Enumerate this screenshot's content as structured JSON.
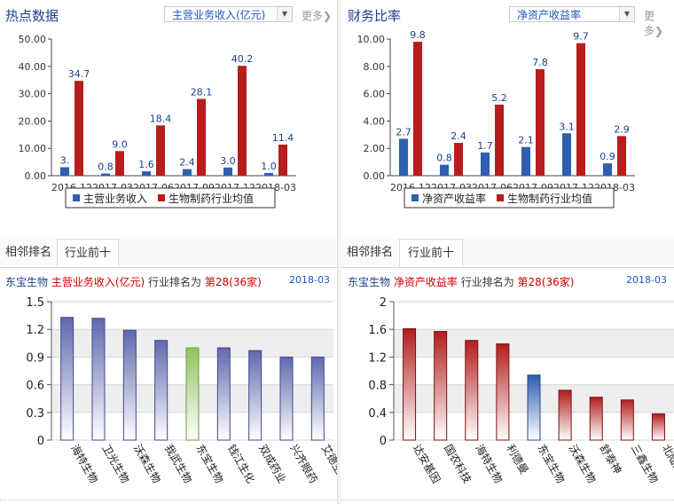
{
  "left": {
    "title": "热点数据",
    "select_value": "主营业务收入(亿元)",
    "more": "更多",
    "tabs": [
      "相邻排名",
      "行业前十"
    ],
    "rank": {
      "company": "东宝生物",
      "metric": "主营业务收入(亿元)",
      "mid": "行业排名为",
      "rank": "第28(36家)",
      "date": "2018-03"
    }
  },
  "right": {
    "title": "财务比率",
    "select_value": "净资产收益率",
    "more": "更多",
    "tabs": [
      "相邻排名",
      "行业前十"
    ],
    "rank": {
      "company": "东宝生物",
      "metric": "净资产收益率",
      "mid": "行业排名为",
      "rank": "第28(36家)",
      "date": "2018-03"
    }
  },
  "colors": {
    "blue": "#2e5fb0",
    "red": "#b81d1d",
    "green": "#9cc66b",
    "title": "#1d3f8c"
  },
  "chart_data": [
    {
      "type": "bar",
      "categories": [
        "2016-12",
        "2017-03",
        "2017-06",
        "2017-09",
        "2017-12",
        "2018-03"
      ],
      "series": [
        {
          "name": "主营业务收入",
          "values": [
            3.1,
            0.8,
            1.6,
            2.4,
            3.0,
            1.0
          ],
          "labels": [
            "3.",
            "0.8",
            "1.6",
            "2.4",
            "3.0",
            "1.0"
          ]
        },
        {
          "name": "生物制药行业均值",
          "values": [
            34.7,
            9.0,
            18.4,
            28.1,
            40.2,
            11.4
          ],
          "labels": [
            "34.7",
            "9.0",
            "18.4",
            "28.1",
            "40.2",
            "11.4"
          ]
        }
      ],
      "yticks": [
        "0.00",
        "10.00",
        "20.00",
        "30.00",
        "40.00",
        "50.00"
      ],
      "ylim": [
        0,
        50
      ],
      "legend": "bottom"
    },
    {
      "type": "bar",
      "categories": [
        "2016-12",
        "2017-03",
        "2017-06",
        "2017-09",
        "2017-12",
        "2018-03"
      ],
      "series": [
        {
          "name": "净资产收益率",
          "values": [
            2.7,
            0.8,
            1.7,
            2.1,
            3.1,
            0.9
          ],
          "labels": [
            "2.7",
            "0.8",
            "1.7",
            "2.1",
            "3.1",
            "0.9"
          ]
        },
        {
          "name": "生物制药行业均值",
          "values": [
            9.8,
            2.4,
            5.2,
            7.8,
            9.7,
            2.9
          ],
          "labels": [
            "9.8",
            "2.4",
            "5.2",
            "7.8",
            "9.7",
            "2.9"
          ]
        }
      ],
      "yticks": [
        "0.00",
        "2.00",
        "4.00",
        "6.00",
        "8.00",
        "10.00"
      ],
      "ylim": [
        0,
        10
      ],
      "legend": "bottom"
    },
    {
      "type": "bar",
      "categories": [
        "海特生物",
        "卫光生物",
        "沃森生物",
        "我武生物",
        "东宝生物",
        "钱江生化",
        "双成药业",
        "兴齐眼药",
        "艾德生物"
      ],
      "values": [
        1.33,
        1.32,
        1.19,
        1.08,
        1.0,
        1.0,
        0.97,
        0.9,
        0.9
      ],
      "highlight": "东宝生物",
      "yticks": [
        "0",
        "0.3",
        "0.6",
        "0.9",
        "1.2",
        "1.5"
      ],
      "ylim": [
        0,
        1.5
      ]
    },
    {
      "type": "bar",
      "categories": [
        "达安基因",
        "国农科技",
        "海特生物",
        "利德曼",
        "东宝生物",
        "沃森生物",
        "舒泰神",
        "三鑫生物",
        "北陆药业"
      ],
      "values": [
        1.61,
        1.57,
        1.44,
        1.39,
        0.94,
        0.72,
        0.62,
        0.58,
        0.38
      ],
      "highlight": "东宝生物",
      "yticks": [
        "0",
        "0.4",
        "0.8",
        "1.2",
        "1.6",
        "2"
      ],
      "ylim": [
        0,
        2
      ]
    }
  ]
}
